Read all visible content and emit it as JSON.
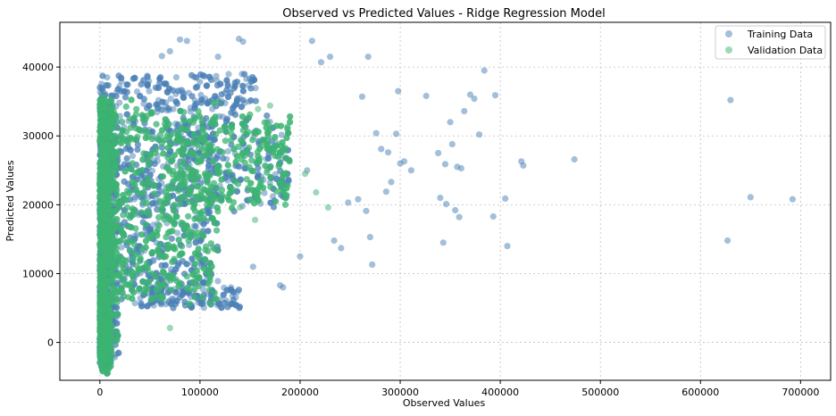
{
  "chart_data": {
    "type": "scatter",
    "title": "Observed vs Predicted Values - Ridge Regression Model",
    "xlabel": "Observed Values",
    "ylabel": "Predicted Values",
    "xlim": [
      -40000,
      730000
    ],
    "ylim": [
      -5500,
      46500
    ],
    "xticks": [
      0,
      100000,
      200000,
      300000,
      400000,
      500000,
      600000,
      700000
    ],
    "yticks": [
      0,
      10000,
      20000,
      30000,
      40000
    ],
    "grid": true,
    "legend_position": "top-right",
    "series": [
      {
        "name": "Training Data",
        "color": "#4a7fb5",
        "outliers": [
          [
            630000,
            35200
          ],
          [
            627000,
            14800
          ],
          [
            650000,
            21100
          ],
          [
            692000,
            20800
          ],
          [
            474000,
            26600
          ],
          [
            421000,
            26300
          ],
          [
            423000,
            25700
          ],
          [
            405000,
            20900
          ],
          [
            407000,
            14000
          ],
          [
            384000,
            39500
          ],
          [
            379000,
            30200
          ],
          [
            393000,
            18300
          ],
          [
            395000,
            35900
          ],
          [
            370000,
            36000
          ],
          [
            374000,
            35400
          ],
          [
            364000,
            33600
          ],
          [
            357000,
            25500
          ],
          [
            361000,
            25300
          ],
          [
            352000,
            28800
          ],
          [
            350000,
            32000
          ],
          [
            345000,
            25900
          ],
          [
            338000,
            27500
          ],
          [
            340000,
            21000
          ],
          [
            343000,
            14500
          ],
          [
            346000,
            20100
          ],
          [
            355000,
            19200
          ],
          [
            359000,
            18200
          ],
          [
            326000,
            35800
          ],
          [
            311000,
            25000
          ],
          [
            304000,
            26300
          ],
          [
            300000,
            26000
          ],
          [
            298000,
            36500
          ],
          [
            296000,
            30300
          ],
          [
            291000,
            23300
          ],
          [
            288000,
            27600
          ],
          [
            286000,
            21900
          ],
          [
            281000,
            28100
          ],
          [
            276000,
            30400
          ],
          [
            272000,
            11300
          ],
          [
            270000,
            15300
          ],
          [
            268000,
            41500
          ],
          [
            262000,
            35700
          ],
          [
            258000,
            20800
          ],
          [
            266000,
            19100
          ],
          [
            248000,
            20300
          ],
          [
            241000,
            13700
          ],
          [
            234000,
            14800
          ],
          [
            230000,
            41500
          ],
          [
            212000,
            43800
          ],
          [
            221000,
            40700
          ],
          [
            207000,
            25000
          ],
          [
            200000,
            12500
          ],
          [
            183000,
            8000
          ],
          [
            180000,
            8300
          ],
          [
            153000,
            11000
          ],
          [
            139000,
            44100
          ],
          [
            143000,
            43700
          ],
          [
            118000,
            41500
          ],
          [
            87000,
            43800
          ],
          [
            80000,
            44000
          ],
          [
            70000,
            42300
          ],
          [
            62000,
            41600
          ]
        ]
      },
      {
        "name": "Validation Data",
        "color": "#3cb371",
        "outliers": [
          [
            70000,
            2100
          ],
          [
            120000,
            34900
          ],
          [
            170000,
            34400
          ],
          [
            158000,
            33900
          ],
          [
            205000,
            24500
          ],
          [
            228000,
            19600
          ],
          [
            216000,
            21800
          ],
          [
            155000,
            17800
          ],
          [
            140000,
            19600
          ],
          [
            185000,
            27800
          ],
          [
            160000,
            26800
          ]
        ]
      }
    ]
  }
}
